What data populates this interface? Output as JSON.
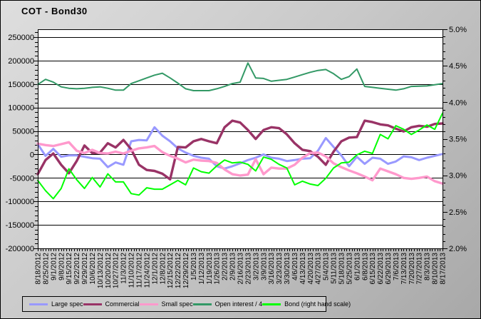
{
  "title": "COT - Bond30",
  "style": {
    "plot_background": "#ffffff",
    "grid_color": "#000000",
    "outer_background_light": "#dedede",
    "outer_background_dark": "#a8a8a8",
    "legend_background": "#cccccc",
    "legend_border": "#000000"
  },
  "chart_data": {
    "type": "line",
    "title": "COT - Bond30",
    "grid": "horizontal",
    "legend_position": "bottom",
    "left_axis": {
      "min": -200000,
      "max": 266700,
      "tick_values": [
        250000,
        200000,
        150000,
        100000,
        50000,
        0,
        -50000,
        -100000,
        -150000,
        -200000
      ],
      "tick_labels": [
        "250000",
        "200000",
        "150000",
        "100000",
        "50000",
        "0",
        "-50000",
        "-100000",
        "-150000",
        "-200000"
      ],
      "minor_step": 10000
    },
    "right_axis": {
      "min": 2.0,
      "max": 5.0,
      "tick_values": [
        5.0,
        4.5,
        4.0,
        3.5,
        3.0,
        2.5,
        2.0
      ],
      "tick_labels": [
        "5.0%",
        "4.5%",
        "4.0%",
        "3.5%",
        "3.0%",
        "2.5%",
        "2.0%"
      ],
      "minor_step": 0.1
    },
    "x_labels": [
      "8/18/2012",
      "8/25/2012",
      "9/1/2012",
      "9/8/2012",
      "9/15/2012",
      "9/22/2012",
      "9/29/2012",
      "10/6/2012",
      "10/13/2012",
      "10/20/2012",
      "10/27/2012",
      "11/3/2012",
      "11/10/2012",
      "11/17/2012",
      "11/24/2012",
      "12/1/2012",
      "12/8/2012",
      "12/15/2012",
      "12/22/2012",
      "12/29/2012",
      "1/5/2013",
      "1/12/2013",
      "1/19/2013",
      "1/26/2013",
      "2/2/2013",
      "2/9/2013",
      "2/16/2013",
      "2/23/2013",
      "3/2/2013",
      "3/9/2013",
      "3/16/2013",
      "3/23/2013",
      "3/30/2013",
      "4/6/2013",
      "4/13/2013",
      "4/20/2013",
      "4/27/2013",
      "5/4/2013",
      "5/11/2013",
      "5/18/2013",
      "5/25/2013",
      "6/1/2013",
      "6/8/2013",
      "6/15/2013",
      "6/22/2013",
      "6/29/2013",
      "7/6/2013",
      "7/13/2013",
      "7/20/2013",
      "7/27/2013",
      "8/3/2013",
      "8/10/2013",
      "8/17/2013"
    ],
    "series": [
      {
        "name": "Large spec",
        "color": "#9999FF",
        "axis": "left",
        "width": 3,
        "values": [
          22000,
          -3000,
          12000,
          -5000,
          -2000,
          -2000,
          -5000,
          -8000,
          -9000,
          -27000,
          -17000,
          -22000,
          28000,
          31000,
          30000,
          58000,
          40000,
          28000,
          13000,
          4000,
          -3000,
          -7000,
          -9000,
          -25000,
          -30000,
          -25000,
          -19000,
          -12000,
          -7000,
          0,
          -7000,
          -9000,
          -14000,
          -12000,
          -9000,
          -8000,
          8000,
          35000,
          16000,
          -2000,
          -25000,
          -5000,
          -20000,
          -7000,
          -9000,
          -20000,
          -15000,
          -4000,
          -6000,
          -12000,
          -7000,
          -3000,
          1000
        ]
      },
      {
        "name": "Commercial",
        "color": "#993366",
        "axis": "left",
        "width": 3.4,
        "values": [
          -42000,
          -12000,
          2000,
          -22000,
          -40000,
          -14000,
          19000,
          3000,
          4000,
          24000,
          15000,
          31000,
          11000,
          -22000,
          -33000,
          -35000,
          -41000,
          -53000,
          16000,
          15000,
          28000,
          33000,
          28000,
          24000,
          58000,
          72000,
          68000,
          52000,
          33000,
          52000,
          58000,
          56000,
          43000,
          24000,
          10000,
          7000,
          -5000,
          -22000,
          6000,
          28000,
          36000,
          37000,
          72000,
          69000,
          64000,
          62000,
          55000,
          49000,
          58000,
          61000,
          59000,
          65000,
          66000
        ]
      },
      {
        "name": "Small spec",
        "color": "#FF99CC",
        "axis": "left",
        "width": 3.4,
        "values": [
          23000,
          20000,
          18000,
          22000,
          26000,
          8000,
          3000,
          10000,
          3000,
          2000,
          6000,
          2000,
          8000,
          13000,
          15000,
          18000,
          5000,
          -3000,
          -9000,
          -17000,
          -11000,
          -13000,
          -14000,
          -18000,
          -32000,
          -42000,
          -45000,
          -43000,
          -10000,
          -42000,
          -28000,
          -30000,
          -30000,
          -22000,
          -7000,
          3000,
          4000,
          -4000,
          -19000,
          -27000,
          -34000,
          -40000,
          -47000,
          -55000,
          -30000,
          -36000,
          -42000,
          -50000,
          -52000,
          -50000,
          -47000,
          -57000,
          -62000
        ]
      },
      {
        "name": "Open interest / 4",
        "color": "#339966",
        "axis": "left",
        "width": 2,
        "values": [
          149000,
          160000,
          154000,
          144000,
          141000,
          140000,
          141000,
          143000,
          144000,
          141000,
          137000,
          137000,
          151000,
          157000,
          163000,
          169000,
          173000,
          163000,
          152000,
          140000,
          136000,
          136000,
          136000,
          140000,
          145000,
          151000,
          154000,
          195000,
          163000,
          162000,
          156000,
          158000,
          160000,
          165000,
          170000,
          175000,
          179000,
          181000,
          172000,
          160000,
          166000,
          182000,
          145000,
          143000,
          141000,
          139000,
          137000,
          140000,
          145000,
          145500,
          146000,
          148500,
          151000
        ]
      },
      {
        "name": "Bond (right hand scale)",
        "color": "#00FF00",
        "axis": "right",
        "width": 2,
        "values": [
          2.93,
          2.79,
          2.68,
          2.82,
          3.09,
          2.94,
          2.82,
          2.97,
          2.84,
          3.02,
          2.91,
          2.91,
          2.75,
          2.73,
          2.83,
          2.81,
          2.81,
          2.87,
          2.93,
          2.87,
          3.1,
          3.05,
          3.03,
          3.13,
          3.21,
          3.17,
          3.18,
          3.15,
          3.06,
          3.25,
          3.22,
          3.15,
          3.1,
          2.87,
          2.92,
          2.88,
          2.86,
          2.96,
          3.1,
          3.17,
          3.18,
          3.28,
          3.33,
          3.3,
          3.56,
          3.5,
          3.68,
          3.63,
          3.56,
          3.62,
          3.69,
          3.63,
          3.85
        ]
      }
    ]
  }
}
